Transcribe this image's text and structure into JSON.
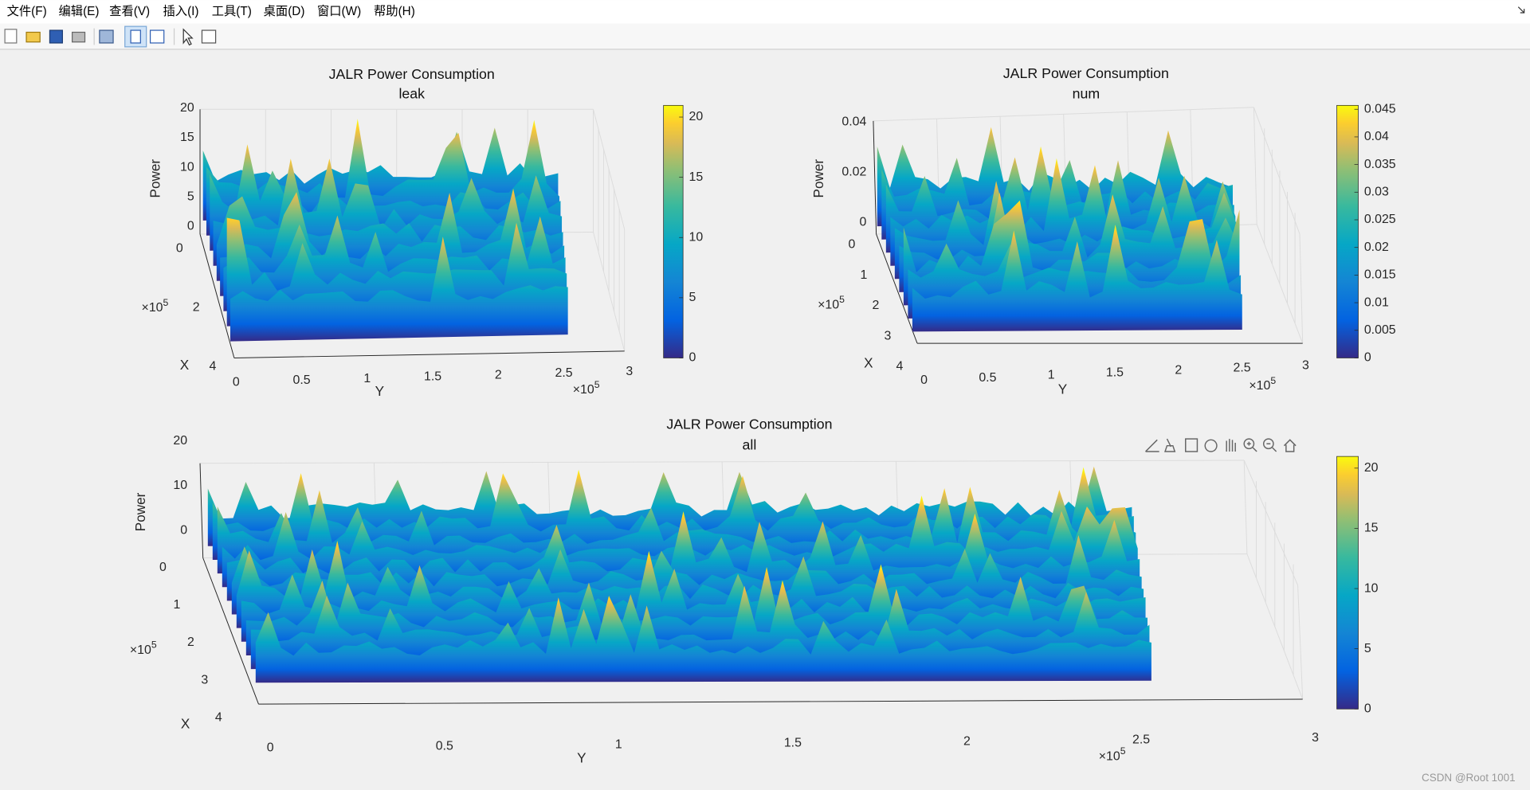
{
  "menu": [
    "文件(F)",
    "编辑(E)",
    "查看(V)",
    "插入(I)",
    "工具(T)",
    "桌面(D)",
    "窗口(W)",
    "帮助(H)"
  ],
  "plots": [
    {
      "title": "JALR Power Consumption",
      "subtitle": "leak",
      "zlabel": "Power",
      "xlabel": "X",
      "ylabel": "Y",
      "zticks": [
        "20",
        "15",
        "10",
        "5",
        "0"
      ],
      "xticks": [
        "0",
        "2",
        "4"
      ],
      "yticks": [
        "0",
        "0.5",
        "1",
        "1.5",
        "2",
        "2.5",
        "3"
      ],
      "x_multiplier": {
        "base": "×10",
        "power": "5"
      },
      "y_multiplier": {
        "base": "×10",
        "power": "5"
      },
      "colorbar_ticks": [
        "20",
        "15",
        "10",
        "5",
        "0"
      ]
    },
    {
      "title": "JALR Power Consumption",
      "subtitle": "num",
      "zlabel": "Power",
      "xlabel": "X",
      "ylabel": "Y",
      "zticks": [
        "0.04",
        "0.02",
        "0"
      ],
      "xticks": [
        "0",
        "1",
        "2",
        "3",
        "4"
      ],
      "yticks": [
        "0",
        "0.5",
        "1",
        "1.5",
        "2",
        "2.5",
        "3"
      ],
      "x_multiplier": {
        "base": "×10",
        "power": "5"
      },
      "y_multiplier": {
        "base": "×10",
        "power": "5"
      },
      "colorbar_ticks": [
        "0.045",
        "0.04",
        "0.035",
        "0.03",
        "0.025",
        "0.02",
        "0.015",
        "0.01",
        "0.005",
        "0"
      ]
    },
    {
      "title": "JALR Power Consumption",
      "subtitle": "all",
      "zlabel": "Power",
      "xlabel": "X",
      "ylabel": "Y",
      "zticks": [
        "20",
        "10",
        "0"
      ],
      "xticks": [
        "0",
        "1",
        "2",
        "3",
        "4"
      ],
      "yticks": [
        "0",
        "0.5",
        "1",
        "1.5",
        "2",
        "2.5",
        "3"
      ],
      "x_multiplier": {
        "base": "×10",
        "power": "5"
      },
      "y_multiplier": {
        "base": "×10",
        "power": "5"
      },
      "colorbar_ticks": [
        "20",
        "15",
        "10",
        "5",
        "0"
      ]
    }
  ],
  "watermark": "CSDN @Root 1001"
}
